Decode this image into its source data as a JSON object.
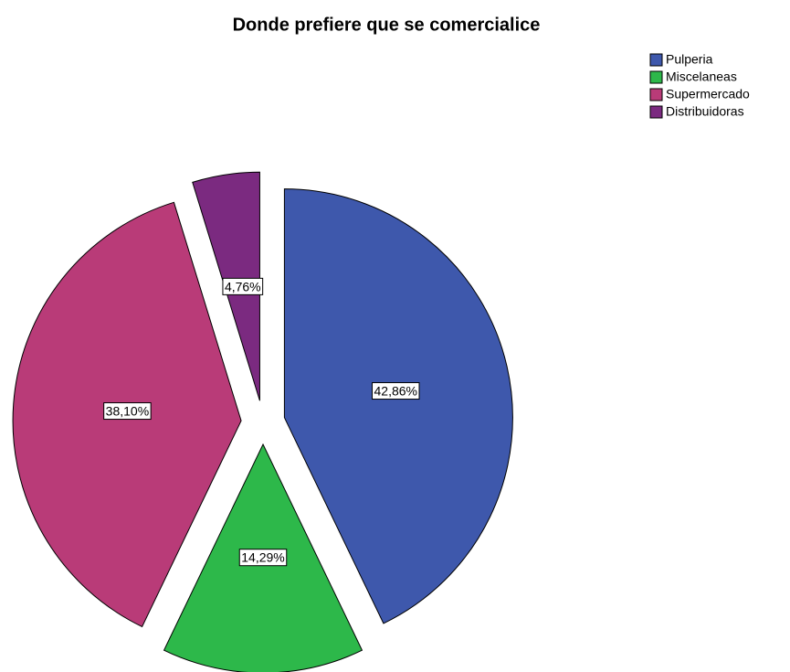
{
  "chart_data": {
    "type": "pie",
    "title": "Donde prefiere que se comercialice",
    "categories": [
      "Pulperia",
      "Miscelaneas",
      "Supermercado",
      "Distribuidoras"
    ],
    "values": [
      42.86,
      14.29,
      38.1,
      4.76
    ],
    "value_labels": [
      "42,86%",
      "14,29%",
      "38,10%",
      "4,76%"
    ],
    "colors": [
      "#3e58ac",
      "#2db84a",
      "#b93b78",
      "#7b2a80"
    ],
    "legend": "top-right"
  }
}
